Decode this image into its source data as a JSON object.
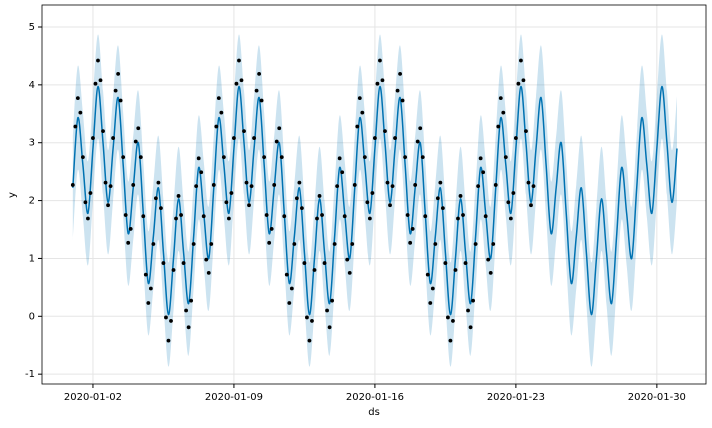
{
  "chart_data": {
    "type": "line",
    "xlabel": "ds",
    "ylabel": "y",
    "xlim": [
      -1.53,
      31.44
    ],
    "ylim": [
      -1.17,
      5.38
    ],
    "xticks": [
      {
        "value": 1,
        "label": "2020-01-02"
      },
      {
        "value": 8,
        "label": "2020-01-09"
      },
      {
        "value": 15,
        "label": "2020-01-16"
      },
      {
        "value": 22,
        "label": "2020-01-23"
      },
      {
        "value": 29,
        "label": "2020-01-30"
      }
    ],
    "yticks": [
      -1,
      0,
      1,
      2,
      3,
      4,
      5
    ],
    "grid": true,
    "forecast": {
      "color": "#0072B2",
      "x": [
        0,
        0.25,
        0.5,
        0.75,
        1,
        1.25,
        1.5,
        1.75,
        2,
        2.25,
        2.5,
        2.75,
        3,
        3.25,
        3.5,
        3.75,
        4,
        4.25,
        4.5,
        4.75,
        5,
        5.25,
        5.5,
        5.75,
        6,
        6.25,
        6.5,
        6.75,
        7,
        7.25,
        7.5,
        7.75,
        8,
        8.25,
        8.5,
        8.75,
        9,
        9.25,
        9.5,
        9.75,
        10,
        10.25,
        10.5,
        10.75,
        11,
        11.25,
        11.5,
        11.75,
        12,
        12.25,
        12.5,
        12.75,
        13,
        13.25,
        13.5,
        13.75,
        14,
        14.25,
        14.5,
        14.75,
        15,
        15.25,
        15.5,
        15.75,
        16,
        16.25,
        16.5,
        16.75,
        17,
        17.25,
        17.5,
        17.75,
        18,
        18.25,
        18.5,
        18.75,
        19,
        19.25,
        19.5,
        19.75,
        20,
        20.25,
        20.5,
        20.75,
        21,
        21.25,
        21.5,
        21.75,
        22,
        22.25,
        22.5,
        22.75,
        23,
        23.25,
        23.5,
        23.75,
        24,
        24.25,
        24.5,
        24.75,
        25,
        25.25,
        25.5,
        25.75,
        26,
        26.25,
        26.5,
        26.75,
        27,
        27.25,
        27.5,
        27.75,
        28,
        28.25,
        28.5,
        28.75,
        29,
        29.25,
        29.5,
        29.75,
        30
      ],
      "values": [
        2.22,
        3.43,
        2.62,
        1.78,
        2.9,
        3.97,
        3,
        1.97,
        2.9,
        3.78,
        2.62,
        1.43,
        2.22,
        3,
        1.78,
        0.57,
        1.38,
        2.22,
        1.1,
        0.03,
        1,
        2.03,
        1.1,
        0.22,
        1.38,
        2.57,
        1.78,
        1,
        2.22,
        3.43,
        2.62,
        1.78,
        2.9,
        3.97,
        3,
        1.97,
        2.9,
        3.78,
        2.62,
        1.43,
        2.22,
        3,
        1.78,
        0.57,
        1.38,
        2.22,
        1.1,
        0.03,
        1,
        2.03,
        1.1,
        0.22,
        1.38,
        2.57,
        1.78,
        1,
        2.22,
        3.43,
        2.62,
        1.78,
        2.9,
        3.97,
        3,
        1.97,
        2.9,
        3.78,
        2.62,
        1.43,
        2.22,
        3,
        1.78,
        0.57,
        1.38,
        2.22,
        1.1,
        0.03,
        1,
        2.03,
        1.1,
        0.22,
        1.38,
        2.57,
        1.78,
        1,
        2.22,
        3.43,
        2.62,
        1.78,
        2.9,
        3.97,
        3,
        1.97,
        2.9,
        3.78,
        2.62,
        1.43,
        2.22,
        3,
        1.78,
        0.57,
        1.38,
        2.22,
        1.1,
        0.03,
        1,
        2.03,
        1.1,
        0.22,
        1.38,
        2.57,
        1.78,
        1,
        2.22,
        3.43,
        2.62,
        1.78,
        2.9,
        3.97,
        3,
        1.97,
        2.9
      ],
      "upper": [
        3.12,
        4.33,
        3.52,
        2.68,
        3.8,
        4.87,
        3.9,
        2.87,
        3.8,
        4.68,
        3.52,
        2.33,
        3.12,
        3.9,
        2.68,
        1.47,
        2.28,
        3.12,
        2,
        0.93,
        1.9,
        2.93,
        2,
        1.12,
        2.28,
        3.47,
        2.68,
        1.9,
        3.12,
        4.33,
        3.52,
        2.68,
        3.8,
        4.87,
        3.9,
        2.87,
        3.8,
        4.68,
        3.52,
        2.33,
        3.12,
        3.9,
        2.68,
        1.47,
        2.28,
        3.12,
        2,
        0.93,
        1.9,
        2.93,
        2,
        1.12,
        2.28,
        3.47,
        2.68,
        1.9,
        3.12,
        4.33,
        3.52,
        2.68,
        3.8,
        4.87,
        3.9,
        2.87,
        3.8,
        4.68,
        3.52,
        2.33,
        3.12,
        3.9,
        2.68,
        1.47,
        2.28,
        3.12,
        2,
        0.93,
        1.9,
        2.93,
        2,
        1.12,
        2.28,
        3.47,
        2.68,
        1.9,
        3.12,
        4.33,
        3.52,
        2.68,
        3.8,
        4.87,
        3.9,
        2.87,
        3.8,
        4.68,
        3.52,
        2.33,
        3.12,
        3.9,
        2.68,
        1.47,
        2.28,
        3.12,
        2,
        0.93,
        1.9,
        2.93,
        2,
        1.12,
        2.28,
        3.47,
        2.68,
        1.9,
        3.12,
        4.33,
        3.52,
        2.68,
        3.8,
        4.87,
        3.9,
        2.87,
        3.8
      ],
      "lower": [
        1.32,
        2.53,
        1.72,
        0.88,
        2,
        3.07,
        2.1,
        1.07,
        2,
        2.88,
        1.72,
        0.53,
        1.32,
        2.1,
        0.88,
        -0.33,
        0.48,
        1.32,
        0.2,
        -0.87,
        0.1,
        1.13,
        0.2,
        -0.68,
        0.48,
        1.67,
        0.88,
        0.1,
        1.32,
        2.53,
        1.72,
        0.88,
        2,
        3.07,
        2.1,
        1.07,
        2,
        2.88,
        1.72,
        0.53,
        1.32,
        2.1,
        0.88,
        -0.33,
        0.48,
        1.32,
        0.2,
        -0.87,
        0.1,
        1.13,
        0.2,
        -0.68,
        0.48,
        1.67,
        0.88,
        0.1,
        1.32,
        2.53,
        1.72,
        0.88,
        2,
        3.07,
        2.1,
        1.07,
        2,
        2.88,
        1.72,
        0.53,
        1.32,
        2.1,
        0.88,
        -0.33,
        0.48,
        1.32,
        0.2,
        -0.87,
        0.1,
        1.13,
        0.2,
        -0.68,
        0.48,
        1.67,
        0.88,
        0.1,
        1.32,
        2.53,
        1.72,
        0.88,
        2,
        3.07,
        2.1,
        1.07,
        2,
        2.88,
        1.72,
        0.53,
        1.32,
        2.1,
        0.88,
        -0.33,
        0.48,
        1.32,
        0.2,
        -0.87,
        0.1,
        1.13,
        0.2,
        -0.68,
        0.48,
        1.67,
        0.88,
        0.1,
        1.32,
        2.53,
        1.72,
        0.88,
        2,
        3.07,
        2.1,
        1.07,
        2
      ]
    },
    "observed": {
      "color": "#000000",
      "x": [
        0,
        0.125,
        0.25,
        0.375,
        0.5,
        0.625,
        0.75,
        0.875,
        1,
        1.125,
        1.25,
        1.375,
        1.5,
        1.625,
        1.75,
        1.875,
        2,
        2.125,
        2.25,
        2.375,
        2.5,
        2.625,
        2.75,
        2.875,
        3,
        3.125,
        3.25,
        3.375,
        3.5,
        3.625,
        3.75,
        3.875,
        4,
        4.125,
        4.25,
        4.375,
        4.5,
        4.625,
        4.75,
        4.875,
        5,
        5.125,
        5.25,
        5.375,
        5.5,
        5.625,
        5.75,
        5.875,
        6,
        6.125,
        6.25,
        6.375,
        6.5,
        6.625,
        6.75,
        6.875,
        7,
        7.125,
        7.25,
        7.375,
        7.5,
        7.625,
        7.75,
        7.875,
        8,
        8.125,
        8.25,
        8.375,
        8.5,
        8.625,
        8.75,
        8.875,
        9,
        9.125,
        9.25,
        9.375,
        9.5,
        9.625,
        9.75,
        9.875,
        10,
        10.125,
        10.25,
        10.375,
        10.5,
        10.625,
        10.75,
        10.875,
        11,
        11.125,
        11.25,
        11.375,
        11.5,
        11.625,
        11.75,
        11.875,
        12,
        12.125,
        12.25,
        12.375,
        12.5,
        12.625,
        12.75,
        12.875,
        13,
        13.125,
        13.25,
        13.375,
        13.5,
        13.625,
        13.75,
        13.875,
        14,
        14.125,
        14.25,
        14.375,
        14.5,
        14.625,
        14.75,
        14.875,
        15,
        15.125,
        15.25,
        15.375,
        15.5,
        15.625,
        15.75,
        15.875,
        16,
        16.125,
        16.25,
        16.375,
        16.5,
        16.625,
        16.75,
        16.875,
        17,
        17.125,
        17.25,
        17.375,
        17.5,
        17.625,
        17.75,
        17.875,
        18,
        18.125,
        18.25,
        18.375,
        18.5,
        18.625,
        18.75,
        18.875,
        19,
        19.125,
        19.25,
        19.375,
        19.5,
        19.625,
        19.75,
        19.875,
        20,
        20.125,
        20.25,
        20.375,
        20.5,
        20.625,
        20.75,
        20.875,
        21,
        21.125,
        21.25,
        21.375,
        21.5,
        21.625,
        21.75,
        21.875,
        22,
        22.125,
        22.25,
        22.375,
        22.5,
        22.625,
        22.75,
        22.875
      ],
      "values": [
        2.27,
        3.28,
        3.77,
        3.52,
        2.75,
        1.97,
        1.69,
        2.13,
        3.08,
        4.02,
        4.42,
        4.08,
        3.2,
        2.31,
        1.92,
        2.25,
        3.08,
        3.9,
        4.19,
        3.73,
        2.75,
        1.75,
        1.27,
        1.51,
        2.27,
        3.02,
        3.25,
        2.75,
        1.73,
        0.72,
        0.23,
        0.48,
        1.25,
        2.04,
        2.31,
        1.87,
        0.92,
        -0.02,
        -0.42,
        -0.08,
        0.8,
        1.69,
        2.08,
        1.75,
        0.92,
        0.1,
        -0.19,
        0.27,
        1.25,
        2.25,
        2.73,
        2.49,
        1.73,
        0.98,
        0.75,
        1.25,
        2.27,
        3.28,
        3.77,
        3.52,
        2.75,
        1.97,
        1.69,
        2.13,
        3.08,
        4.02,
        4.42,
        4.08,
        3.2,
        2.31,
        1.92,
        2.25,
        3.08,
        3.9,
        4.19,
        3.73,
        2.75,
        1.75,
        1.27,
        1.51,
        2.27,
        3.02,
        3.25,
        2.75,
        1.73,
        0.72,
        0.23,
        0.48,
        1.25,
        2.04,
        2.31,
        1.87,
        0.92,
        -0.02,
        -0.42,
        -0.08,
        0.8,
        1.69,
        2.08,
        1.75,
        0.92,
        0.1,
        -0.19,
        0.27,
        1.25,
        2.25,
        2.73,
        2.49,
        1.73,
        0.98,
        0.75,
        1.25,
        2.27,
        3.28,
        3.77,
        3.52,
        2.75,
        1.97,
        1.69,
        2.13,
        3.08,
        4.02,
        4.42,
        4.08,
        3.2,
        2.31,
        1.92,
        2.25,
        3.08,
        3.9,
        4.19,
        3.73,
        2.75,
        1.75,
        1.27,
        1.51,
        2.27,
        3.02,
        3.25,
        2.75,
        1.73,
        0.72,
        0.23,
        0.48,
        1.25,
        2.04,
        2.31,
        1.87,
        0.92,
        -0.02,
        -0.42,
        -0.08,
        0.8,
        1.69,
        2.08,
        1.75,
        0.92,
        0.1,
        -0.19,
        0.27,
        1.25,
        2.25,
        2.73,
        2.49,
        1.73,
        0.98,
        0.75,
        1.25,
        2.27,
        3.28,
        3.77,
        3.52,
        2.75,
        1.97,
        1.69,
        2.13,
        3.08,
        4.02,
        4.42,
        4.08,
        3.2,
        2.31,
        1.92,
        2.25
      ]
    }
  }
}
